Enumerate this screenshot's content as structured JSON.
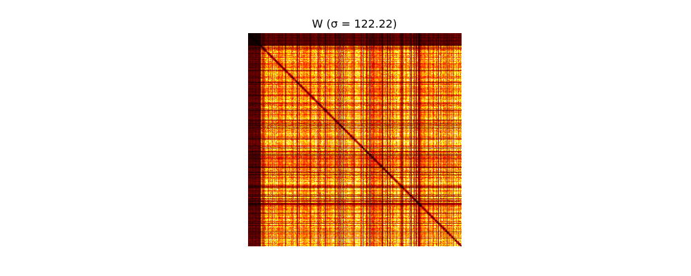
{
  "chart_data": {
    "type": "heatmap",
    "title": "W (σ = 122.22)",
    "xlabel": "",
    "ylabel": "",
    "axes_visible": false,
    "colorbar": false,
    "grid": false,
    "colormap": "hot",
    "matrix_size": 300,
    "structure": {
      "symmetric": true,
      "diagonal_value": 0.0,
      "dark_leading_rows_cols": 18,
      "leading_block_intensity": 0.12,
      "typical_offdiagonal_intensity": 0.7,
      "intensity_range": [
        0.0,
        1.0
      ]
    }
  }
}
